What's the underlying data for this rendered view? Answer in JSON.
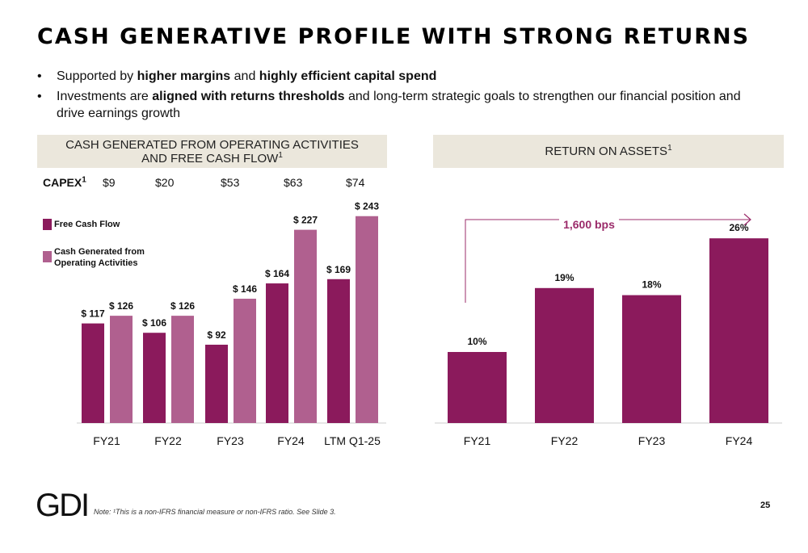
{
  "title": "CASH GENERATIVE PROFILE WITH STRONG RETURNS",
  "bullets": [
    {
      "bullet": "•",
      "parts": [
        {
          "text": "Supported by "
        },
        {
          "text": "higher margins",
          "bold": true
        },
        {
          "text": " and "
        },
        {
          "text": "highly efficient capital spend",
          "bold": true
        }
      ]
    },
    {
      "bullet": "•",
      "parts": [
        {
          "text": "Investments are "
        },
        {
          "text": "aligned with returns thresholds",
          "bold": true
        },
        {
          "text": " and long-term strategic goals to strengthen our financial position and drive earnings growth"
        }
      ]
    }
  ],
  "left_header": {
    "line1": "CASH GENERATED FROM OPERATING ACTIVITIES",
    "line2": "AND FREE CASH FLOW",
    "sup": "1"
  },
  "right_header": {
    "text": "RETURN ON ASSETS",
    "sup": "1"
  },
  "capex": {
    "label": "CAPEX",
    "sup": "1",
    "values": [
      "$9",
      "$20",
      "$53",
      "$63",
      "$74"
    ]
  },
  "colors": {
    "fcf": "#8b1a5c",
    "ocf": "#b0608f",
    "header_bg": "#ebe7dc",
    "bps": "#9b2b6a"
  },
  "footer": {
    "logo": "GDI",
    "note": "Note: ¹This is a non-IFRS financial measure or non-IFRS ratio. See Slide 3.",
    "page": "25"
  },
  "chart_data": [
    {
      "type": "bar",
      "title": "CASH GENERATED FROM OPERATING ACTIVITIES AND FREE CASH FLOW",
      "categories": [
        "FY21",
        "FY22",
        "FY23",
        "FY24",
        "LTM Q1-25"
      ],
      "series": [
        {
          "name": "Free Cash Flow",
          "values": [
            117,
            106,
            92,
            164,
            169
          ],
          "labels": [
            "$ 117",
            "$ 106",
            "$ 92",
            "$ 164",
            "$ 169"
          ]
        },
        {
          "name": "Cash Generated from Operating Activities",
          "values": [
            126,
            126,
            146,
            227,
            243
          ],
          "labels": [
            "$ 126",
            "$ 126",
            "$ 146",
            "$ 227",
            "$ 243"
          ]
        }
      ],
      "ylim": [
        0,
        260
      ],
      "legend": "top-left",
      "grid": false
    },
    {
      "type": "bar",
      "title": "RETURN ON ASSETS",
      "categories": [
        "FY21",
        "FY22",
        "FY23",
        "FY24"
      ],
      "values": [
        10,
        19,
        18,
        26
      ],
      "labels": [
        "10%",
        "19%",
        "18%",
        "26%"
      ],
      "ylim": [
        0,
        28
      ],
      "annotation": "1,600 bps",
      "grid": false
    }
  ]
}
